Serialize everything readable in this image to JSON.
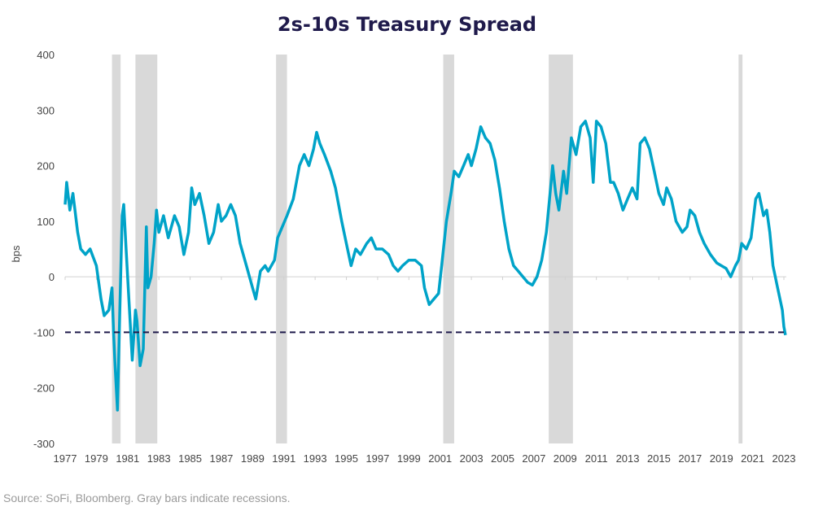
{
  "chart_data": {
    "type": "line",
    "title": "2s-10s Treasury Spread",
    "ylabel": "bps",
    "xlabel": "",
    "ylim": [
      -300,
      400
    ],
    "xlim": [
      1977,
      2023
    ],
    "yticks": [
      400,
      300,
      200,
      100,
      0,
      -100,
      -200,
      -300
    ],
    "xticks": [
      1977,
      1979,
      1981,
      1983,
      1985,
      1987,
      1989,
      1991,
      1993,
      1995,
      1997,
      1999,
      2001,
      2003,
      2005,
      2007,
      2009,
      2011,
      2013,
      2015,
      2017,
      2019,
      2021,
      2023
    ],
    "grid": false,
    "line_color": "#00a3c8",
    "reference_line": {
      "y": -100,
      "style": "dashed",
      "color": "#1f1a4b"
    },
    "recessions": [
      [
        1980.0,
        1980.55
      ],
      [
        1981.5,
        1982.9
      ],
      [
        1990.5,
        1991.2
      ],
      [
        2001.2,
        2001.9
      ],
      [
        2007.95,
        2009.5
      ],
      [
        2020.1,
        2020.35
      ]
    ],
    "recession_color": "#d9d9d9",
    "series": [
      {
        "x": [
          1977.0,
          1977.1,
          1977.3,
          1977.5,
          1977.8,
          1978.0,
          1978.3,
          1978.6,
          1979.0,
          1979.3,
          1979.5,
          1979.8,
          1980.0,
          1980.1,
          1980.2,
          1980.35,
          1980.5,
          1980.65,
          1980.75,
          1980.9,
          1981.1,
          1981.3,
          1981.5,
          1981.6,
          1981.8,
          1982.0,
          1982.2,
          1982.3,
          1982.5,
          1982.7,
          1982.85,
          1983.0,
          1983.3,
          1983.6,
          1984.0,
          1984.3,
          1984.6,
          1984.9,
          1985.1,
          1985.3,
          1985.6,
          1985.9,
          1986.2,
          1986.5,
          1986.8,
          1987.0,
          1987.3,
          1987.6,
          1987.9,
          1988.2,
          1988.6,
          1989.0,
          1989.2,
          1989.5,
          1989.8,
          1990.0,
          1990.4,
          1990.6,
          1990.9,
          1991.2,
          1991.6,
          1992.0,
          1992.3,
          1992.6,
          1992.9,
          1993.1,
          1993.3,
          1993.6,
          1994.0,
          1994.3,
          1994.7,
          1995.0,
          1995.3,
          1995.6,
          1995.9,
          1996.3,
          1996.6,
          1996.9,
          1997.3,
          1997.7,
          1998.0,
          1998.3,
          1998.6,
          1999.0,
          1999.4,
          1999.8,
          2000.0,
          2000.3,
          2000.6,
          2000.9,
          2001.1,
          2001.4,
          2001.7,
          2001.9,
          2002.2,
          2002.5,
          2002.8,
          2003.0,
          2003.3,
          2003.6,
          2003.9,
          2004.2,
          2004.5,
          2004.8,
          2005.1,
          2005.4,
          2005.7,
          2006.0,
          2006.3,
          2006.6,
          2006.9,
          2007.2,
          2007.5,
          2007.8,
          2008.0,
          2008.2,
          2008.4,
          2008.6,
          2008.9,
          2009.1,
          2009.4,
          2009.7,
          2010.0,
          2010.3,
          2010.6,
          2010.8,
          2011.0,
          2011.3,
          2011.6,
          2011.9,
          2012.1,
          2012.4,
          2012.7,
          2013.0,
          2013.3,
          2013.6,
          2013.8,
          2014.1,
          2014.4,
          2014.7,
          2015.0,
          2015.3,
          2015.5,
          2015.8,
          2016.1,
          2016.5,
          2016.8,
          2017.0,
          2017.3,
          2017.6,
          2017.9,
          2018.3,
          2018.7,
          2019.0,
          2019.3,
          2019.6,
          2019.9,
          2020.1,
          2020.3,
          2020.6,
          2020.9,
          2021.2,
          2021.4,
          2021.7,
          2021.9,
          2022.1,
          2022.3,
          2022.6,
          2022.9,
          2023.0,
          2023.1
        ],
        "values": [
          130,
          170,
          120,
          150,
          80,
          50,
          40,
          50,
          20,
          -40,
          -70,
          -60,
          -20,
          -100,
          -160,
          -240,
          -60,
          110,
          130,
          50,
          -50,
          -150,
          -60,
          -80,
          -160,
          -130,
          90,
          -20,
          0,
          60,
          120,
          80,
          110,
          70,
          110,
          90,
          40,
          80,
          160,
          130,
          150,
          110,
          60,
          80,
          130,
          100,
          110,
          130,
          110,
          60,
          20,
          -20,
          -40,
          10,
          20,
          10,
          30,
          70,
          90,
          110,
          140,
          200,
          220,
          200,
          230,
          260,
          240,
          220,
          190,
          160,
          100,
          60,
          20,
          50,
          40,
          60,
          70,
          50,
          50,
          40,
          20,
          10,
          20,
          30,
          30,
          20,
          -20,
          -50,
          -40,
          -30,
          20,
          100,
          150,
          190,
          180,
          200,
          220,
          200,
          230,
          270,
          250,
          240,
          210,
          160,
          100,
          50,
          20,
          10,
          0,
          -10,
          -15,
          0,
          30,
          80,
          140,
          200,
          150,
          120,
          190,
          150,
          250,
          220,
          270,
          280,
          250,
          170,
          280,
          270,
          240,
          170,
          170,
          150,
          120,
          140,
          160,
          140,
          240,
          250,
          230,
          190,
          150,
          130,
          160,
          140,
          100,
          80,
          90,
          120,
          110,
          80,
          60,
          40,
          25,
          20,
          15,
          0,
          20,
          30,
          60,
          50,
          70,
          140,
          150,
          110,
          120,
          80,
          20,
          -20,
          -60,
          -90,
          -105
        ]
      }
    ]
  },
  "source": "Source: SoFi, Bloomberg. Gray bars indicate recessions."
}
